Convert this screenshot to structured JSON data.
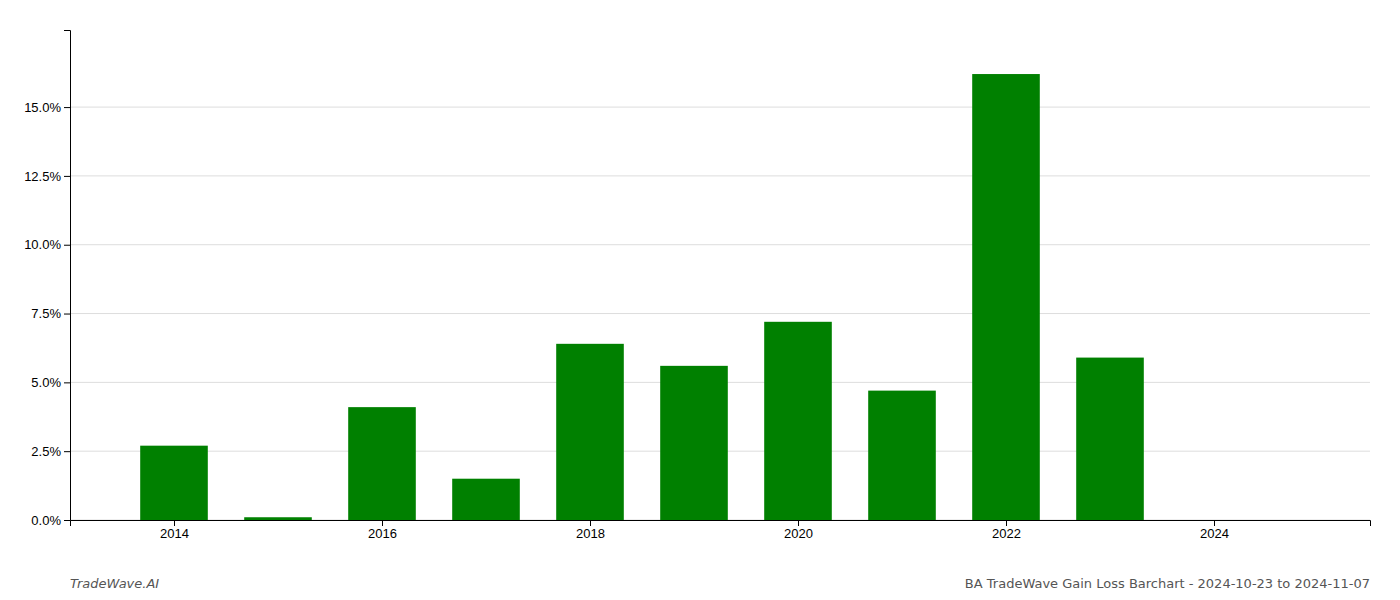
{
  "chart_data": {
    "type": "bar",
    "x": [
      2014,
      2015,
      2016,
      2017,
      2018,
      2019,
      2020,
      2021,
      2022,
      2023,
      2024
    ],
    "values": [
      0.027,
      0.001,
      0.041,
      0.015,
      0.064,
      0.056,
      0.072,
      0.047,
      0.162,
      0.059,
      0.0
    ],
    "color": "#008000",
    "xlim": [
      2013.0,
      2025.5
    ],
    "xticks": [
      2014,
      2016,
      2018,
      2020,
      2022,
      2024
    ],
    "ylim": [
      0,
      0.178
    ],
    "yticks": [
      {
        "value": 0.0,
        "label": "0.0%"
      },
      {
        "value": 0.025,
        "label": "2.5%"
      },
      {
        "value": 0.05,
        "label": "5.0%"
      },
      {
        "value": 0.075,
        "label": "7.5%"
      },
      {
        "value": 0.1,
        "label": "10.0%"
      },
      {
        "value": 0.125,
        "label": "12.5%"
      },
      {
        "value": 0.15,
        "label": "15.0%"
      }
    ],
    "grid": true,
    "annotations": [
      "TradeWave.AI",
      "BA TradeWave Gain Loss Barchart - 2024-10-23 to 2024-11-07"
    ]
  }
}
